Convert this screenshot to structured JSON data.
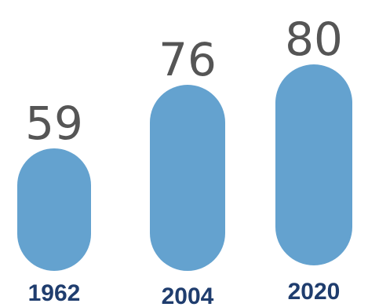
{
  "chart_data": {
    "type": "bar",
    "categories": [
      "1962",
      "2004",
      "2020"
    ],
    "values": [
      59,
      76,
      80
    ],
    "colors": {
      "bar": "#64a2cf",
      "value_text": "#555555",
      "category_text": "#1f3d6e"
    }
  }
}
